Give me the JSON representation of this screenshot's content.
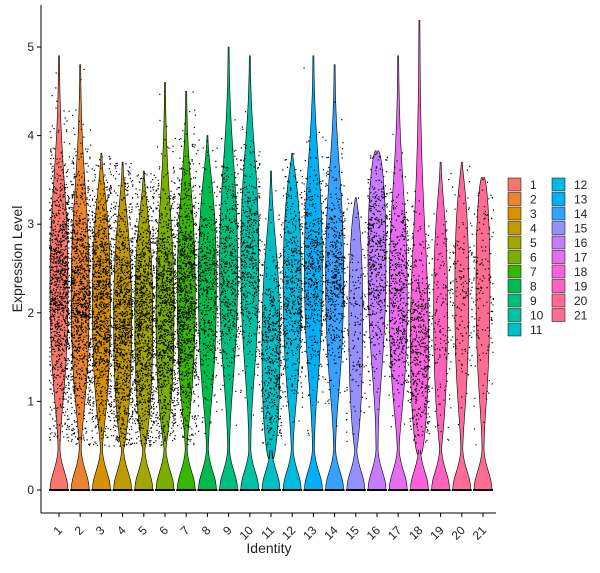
{
  "chart_data": {
    "type": "violin",
    "xlabel": "Identity",
    "ylabel": "Expression Level",
    "ylim": [
      -0.25,
      5.5
    ],
    "yticks": [
      0,
      1,
      2,
      3,
      4,
      5
    ],
    "grid": false,
    "legend_position": "right",
    "jitter_points": true,
    "categories": [
      "1",
      "2",
      "3",
      "4",
      "5",
      "6",
      "7",
      "8",
      "9",
      "10",
      "11",
      "12",
      "13",
      "14",
      "15",
      "16",
      "17",
      "18",
      "19",
      "20",
      "21"
    ],
    "colors": [
      "#F8766D",
      "#EA8331",
      "#D89000",
      "#C09B00",
      "#A3A500",
      "#7CAE00",
      "#39B600",
      "#00BB4E",
      "#00BF7D",
      "#00C1A3",
      "#00BFC4",
      "#00BAE0",
      "#00B0F6",
      "#35A2FF",
      "#9590FF",
      "#C77CFF",
      "#E76BF3",
      "#FA62DB",
      "#FF62BC",
      "#FF6A98",
      "#FF6C91"
    ],
    "series": [
      {
        "name": "1",
        "max": 4.9,
        "median": 2.3,
        "density": "dense"
      },
      {
        "name": "2",
        "max": 4.8,
        "median": 2.2,
        "density": "dense"
      },
      {
        "name": "3",
        "max": 3.8,
        "median": 2.1,
        "density": "dense"
      },
      {
        "name": "4",
        "max": 3.7,
        "median": 1.9,
        "density": "dense"
      },
      {
        "name": "5",
        "max": 3.6,
        "median": 1.9,
        "density": "dense"
      },
      {
        "name": "6",
        "max": 4.6,
        "median": 2.0,
        "density": "dense"
      },
      {
        "name": "7",
        "max": 4.5,
        "median": 2.2,
        "density": "dense"
      },
      {
        "name": "8",
        "max": 4.0,
        "median": 2.3,
        "density": "medium"
      },
      {
        "name": "9",
        "max": 5.0,
        "median": 2.5,
        "density": "medium"
      },
      {
        "name": "10",
        "max": 4.9,
        "median": 2.6,
        "density": "medium"
      },
      {
        "name": "11",
        "max": 3.6,
        "median": 1.6,
        "density": "medium"
      },
      {
        "name": "12",
        "max": 3.8,
        "median": 2.3,
        "density": "medium"
      },
      {
        "name": "13",
        "max": 4.9,
        "median": 2.5,
        "density": "medium"
      },
      {
        "name": "14",
        "max": 4.8,
        "median": 2.4,
        "density": "medium"
      },
      {
        "name": "15",
        "max": 3.3,
        "median": 1.9,
        "density": "sparse"
      },
      {
        "name": "16",
        "max": 3.8,
        "median": 2.6,
        "density": "medium"
      },
      {
        "name": "17",
        "max": 4.9,
        "median": 2.2,
        "density": "medium"
      },
      {
        "name": "18",
        "max": 5.3,
        "median": 1.7,
        "density": "medium"
      },
      {
        "name": "19",
        "max": 3.7,
        "median": 2.0,
        "density": "sparse"
      },
      {
        "name": "20",
        "max": 3.7,
        "median": 2.2,
        "density": "sparse"
      },
      {
        "name": "21",
        "max": 3.5,
        "median": 2.3,
        "density": "sparse"
      }
    ]
  }
}
